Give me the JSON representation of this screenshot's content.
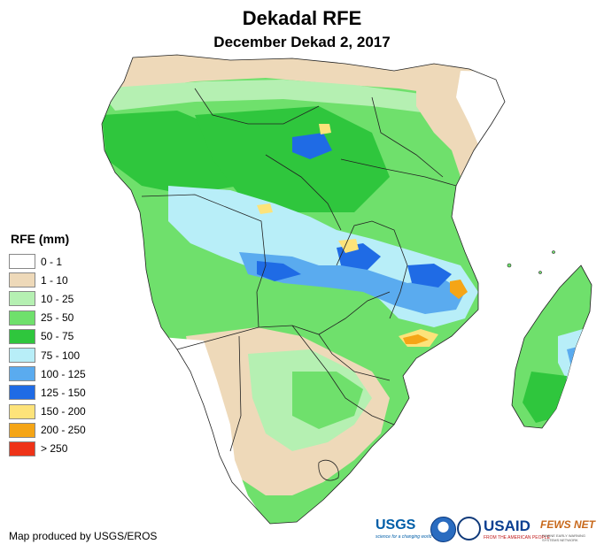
{
  "title": "Dekadal RFE",
  "subtitle": "December Dekad 2, 2017",
  "legend": {
    "title": "RFE (mm)",
    "items": [
      {
        "label": "0 - 1",
        "color": "#ffffff"
      },
      {
        "label": "1 - 10",
        "color": "#eed9b9"
      },
      {
        "label": "10 - 25",
        "color": "#b5f0b2"
      },
      {
        "label": "25 - 50",
        "color": "#6fe06c"
      },
      {
        "label": "50 - 75",
        "color": "#2fc63d"
      },
      {
        "label": "75 - 100",
        "color": "#b8eef8"
      },
      {
        "label": "100 - 125",
        "color": "#5aabef"
      },
      {
        "label": "125 - 150",
        "color": "#1f6be5"
      },
      {
        "label": "150 - 200",
        "color": "#fde37a"
      },
      {
        "label": "200 - 250",
        "color": "#f5a516"
      },
      {
        "label": "> 250",
        "color": "#ee3318"
      }
    ]
  },
  "credit": "Map produced by USGS/EROS",
  "logos": {
    "usgs": "USGS",
    "usgs_tagline": "science for a changing world",
    "usaid": "USAID",
    "usaid_tagline": "FROM THE AMERICAN PEOPLE",
    "fews": "FEWS NET",
    "fews_tagline": "FAMINE EARLY WARNING SYSTEMS NETWORK"
  }
}
